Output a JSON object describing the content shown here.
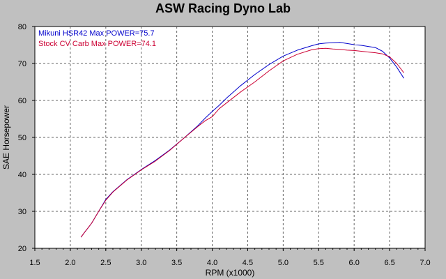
{
  "chart_data": {
    "type": "line",
    "title": "ASW Racing Dyno Lab",
    "xlabel": "RPM (x1000)",
    "ylabel": "SAE Horsepower",
    "xlim": [
      1.5,
      7.0
    ],
    "ylim": [
      20,
      80
    ],
    "xticks": [
      "1.5",
      "2.0",
      "2.5",
      "3.0",
      "3.5",
      "4.0",
      "4.5",
      "5.0",
      "5.5",
      "6.0",
      "6.5",
      "7.0"
    ],
    "yticks": [
      "20",
      "30",
      "40",
      "50",
      "60",
      "70",
      "80"
    ],
    "grid": true,
    "legend_placement": "top-left",
    "series": [
      {
        "name": "Mikuni HSR42",
        "legend_label": "Mikuni HSR42  Max POWER=75.7",
        "color": "#0000cc",
        "x": [
          2.15,
          2.2,
          2.3,
          2.4,
          2.5,
          2.6,
          2.8,
          3.0,
          3.2,
          3.4,
          3.6,
          3.8,
          3.9,
          4.0,
          4.1,
          4.2,
          4.4,
          4.6,
          4.8,
          5.0,
          5.2,
          5.4,
          5.5,
          5.6,
          5.7,
          5.8,
          5.9,
          6.0,
          6.1,
          6.2,
          6.3,
          6.4,
          6.5,
          6.6,
          6.7
        ],
        "y": [
          23.0,
          24.3,
          26.8,
          30.0,
          33.2,
          35.3,
          38.6,
          41.3,
          43.8,
          46.6,
          49.8,
          53.2,
          55.2,
          57.0,
          58.7,
          60.6,
          64.0,
          67.0,
          69.7,
          72.0,
          73.6,
          74.8,
          75.3,
          75.5,
          75.6,
          75.7,
          75.4,
          75.1,
          74.9,
          74.6,
          74.3,
          73.3,
          71.5,
          69.0,
          66.0
        ]
      },
      {
        "name": "Stock CV Carb",
        "legend_label": "Stock CV Carb  Max POWER=74.1",
        "color": "#cc0033",
        "x": [
          2.15,
          2.2,
          2.3,
          2.4,
          2.5,
          2.6,
          2.8,
          3.0,
          3.2,
          3.4,
          3.6,
          3.8,
          3.9,
          4.0,
          4.1,
          4.2,
          4.4,
          4.6,
          4.8,
          5.0,
          5.2,
          5.4,
          5.5,
          5.6,
          5.7,
          5.8,
          5.9,
          6.0,
          6.1,
          6.2,
          6.3,
          6.4,
          6.5,
          6.6,
          6.7
        ],
        "y": [
          23.0,
          24.3,
          26.8,
          30.0,
          33.0,
          35.2,
          38.5,
          41.2,
          43.6,
          46.5,
          49.8,
          53.0,
          54.5,
          55.6,
          57.8,
          59.3,
          62.3,
          65.0,
          68.0,
          70.7,
          72.5,
          73.7,
          74.0,
          74.1,
          73.9,
          73.8,
          73.6,
          73.5,
          73.3,
          73.1,
          72.9,
          72.6,
          71.8,
          70.0,
          67.5
        ]
      }
    ]
  }
}
